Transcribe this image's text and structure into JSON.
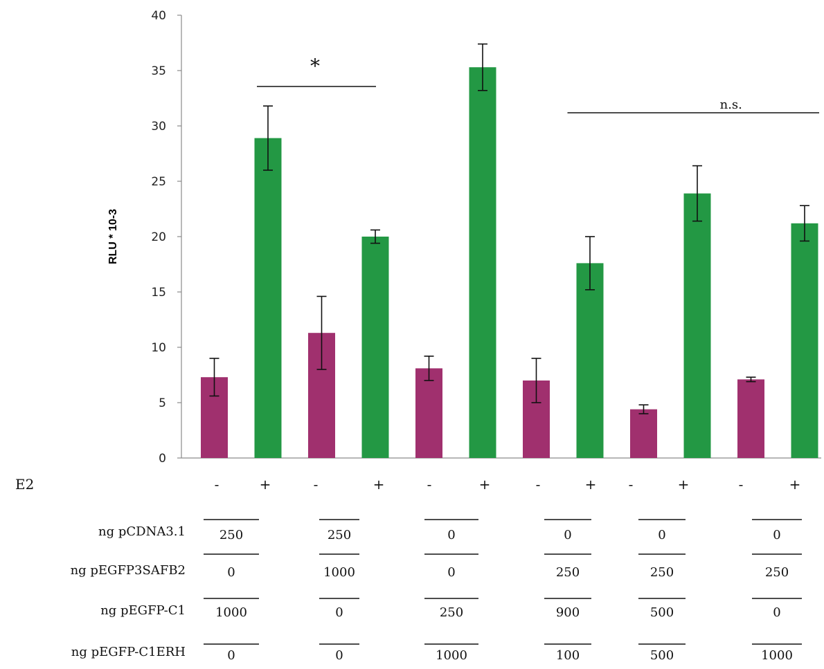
{
  "chart_data": {
    "type": "bar",
    "title": "",
    "xlabel": "",
    "ylabel": "RLU * 10-3",
    "ylim": [
      0,
      40
    ],
    "yticks": [
      0,
      5,
      10,
      15,
      20,
      25,
      30,
      35,
      40
    ],
    "grid": false,
    "legend": "none",
    "colors": {
      "minus": "#a0306e",
      "plus": "#239844"
    },
    "bars": [
      {
        "e2": "-",
        "value": 7.3,
        "error": 1.7
      },
      {
        "e2": "+",
        "value": 28.9,
        "error": 2.9
      },
      {
        "e2": "-",
        "value": 11.3,
        "error": 3.3
      },
      {
        "e2": "+",
        "value": 20.0,
        "error": 0.6
      },
      {
        "e2": "-",
        "value": 8.1,
        "error": 1.1
      },
      {
        "e2": "+",
        "value": 35.3,
        "error": 2.1
      },
      {
        "e2": "-",
        "value": 7.0,
        "error": 2.0
      },
      {
        "e2": "+",
        "value": 17.6,
        "error": 2.4
      },
      {
        "e2": "-",
        "value": 4.4,
        "error": 0.4
      },
      {
        "e2": "+",
        "value": 23.9,
        "error": 2.5
      },
      {
        "e2": "-",
        "value": 7.1,
        "error": 0.2
      },
      {
        "e2": "+",
        "value": 21.2,
        "error": 1.6
      }
    ],
    "annotations": [
      {
        "text": "*",
        "from_bar": 1,
        "to_bar": 3
      },
      {
        "text": "n.s.",
        "from_bar": 6,
        "to_bar": 11
      }
    ],
    "row_label_e2": "E2",
    "table": {
      "rows": [
        {
          "label": "ng pCDNA3.1",
          "values": [
            "250",
            "250",
            "0",
            "0",
            "0",
            "0"
          ]
        },
        {
          "label": "ng pEGFP3SAFB2",
          "values": [
            "0",
            "1000",
            "0",
            "250",
            "250",
            "250"
          ]
        },
        {
          "label": "ng pEGFP-C1",
          "values": [
            "1000",
            "0",
            "250",
            "900",
            "500",
            "0"
          ]
        },
        {
          "label": "ng pEGFP-C1ERH",
          "values": [
            "0",
            "0",
            "1000",
            "100",
            "500",
            "1000"
          ]
        }
      ]
    }
  }
}
